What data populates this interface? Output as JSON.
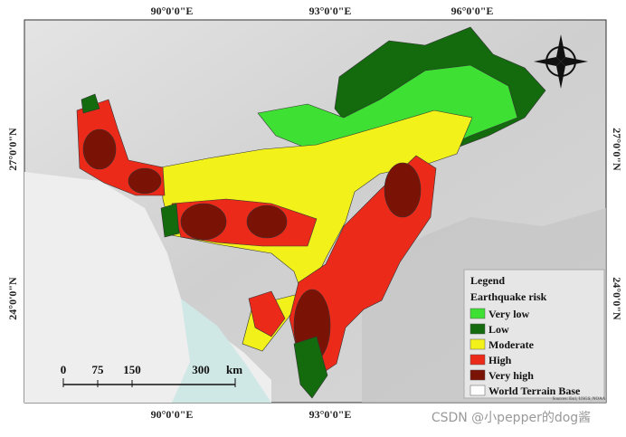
{
  "axes": {
    "top": [
      "90°0'0\"E",
      "93°0'0\"E",
      "96°0'0\"E"
    ],
    "bottom": [
      "90°0'0\"E",
      "93°0'0\"E"
    ],
    "left": [
      "27°0'0\"N",
      "24°0'0\"N"
    ],
    "right": [
      "27°0'0\"N",
      "24°0'0\"N"
    ]
  },
  "legend": {
    "title": "Legend",
    "subtitle": "Earthquake risk",
    "items": [
      {
        "label": "Very low",
        "color": "#3fe034"
      },
      {
        "label": "Low",
        "color": "#136b0e"
      },
      {
        "label": "Moderate",
        "color": "#f2f21a"
      },
      {
        "label": "High",
        "color": "#ec2a1a"
      },
      {
        "label": "Very high",
        "color": "#7a1206"
      },
      {
        "label": "World Terrain Base",
        "color": "#ffffff"
      }
    ]
  },
  "scale_bar": {
    "labels": [
      "0",
      "75",
      "150",
      "300"
    ],
    "unit": "km"
  },
  "attribution": "Sources: Esri, USGS, NOAA",
  "watermark": "CSDN @小pepper的dog酱"
}
